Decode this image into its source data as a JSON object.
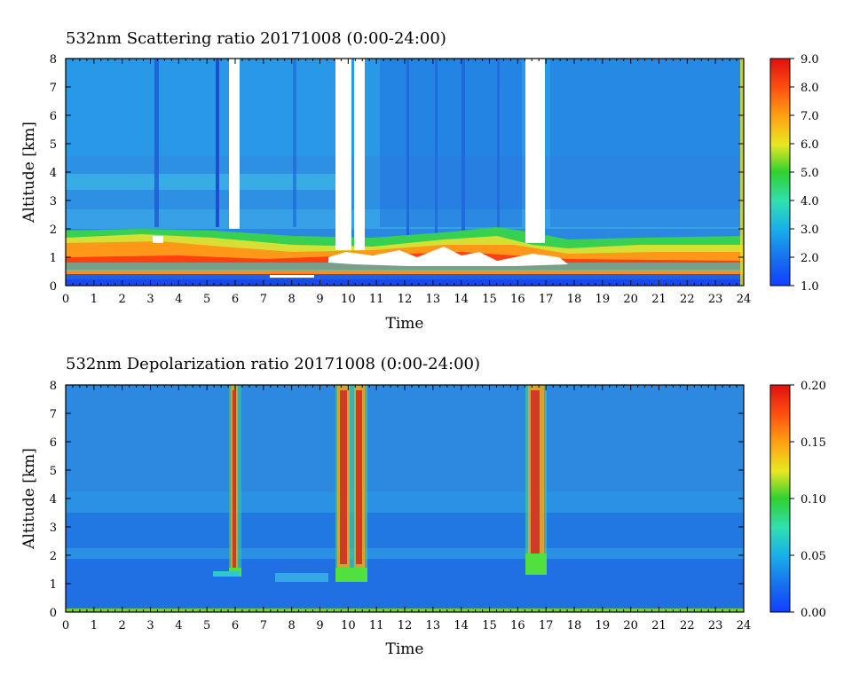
{
  "chart_data": [
    {
      "type": "heatmap",
      "title": "532nm Scattering ratio  20171008 (0:00-24:00)",
      "xlabel": "Time",
      "ylabel": "Altitude [km]",
      "xlim": [
        0,
        24
      ],
      "ylim": [
        0,
        8
      ],
      "x_ticks": [
        "0",
        "1",
        "2",
        "3",
        "4",
        "5",
        "6",
        "7",
        "8",
        "9",
        "10",
        "11",
        "12",
        "13",
        "14",
        "15",
        "16",
        "17",
        "18",
        "19",
        "20",
        "21",
        "22",
        "23",
        "24"
      ],
      "y_ticks": [
        "0",
        "1",
        "2",
        "3",
        "4",
        "5",
        "6",
        "7",
        "8"
      ],
      "colorbar": {
        "range": [
          1.0,
          9.0
        ],
        "ticks": [
          "1.0",
          "2.0",
          "3.0",
          "4.0",
          "5.0",
          "6.0",
          "7.0",
          "8.0",
          "9.0"
        ]
      },
      "background_value": 2.3,
      "features": [
        {
          "kind": "boundary_layer",
          "x_range": [
            0,
            24
          ],
          "alt_km": [
            0.3,
            2.0
          ],
          "value": 7.5
        },
        {
          "kind": "saturated_cloud",
          "x_range": [
            5.8,
            6.2
          ],
          "alt_km": [
            1.4,
            8.0
          ]
        },
        {
          "kind": "saturated_cloud",
          "x_range": [
            9.6,
            10.6
          ],
          "alt_km": [
            1.2,
            8.0
          ]
        },
        {
          "kind": "saturated_cloud",
          "x_range": [
            16.3,
            17.0
          ],
          "alt_km": [
            1.5,
            8.0
          ]
        },
        {
          "kind": "saturated_cloud",
          "x_range": [
            9.8,
            15.5
          ],
          "alt_km": [
            0.8,
            1.2
          ]
        }
      ]
    },
    {
      "type": "heatmap",
      "title": "532nm Depolarization ratio  20171008 (0:00-24:00)",
      "xlabel": "Time",
      "ylabel": "Altitude [km]",
      "xlim": [
        0,
        24
      ],
      "ylim": [
        0,
        8
      ],
      "x_ticks": [
        "0",
        "1",
        "2",
        "3",
        "4",
        "5",
        "6",
        "7",
        "8",
        "9",
        "10",
        "11",
        "12",
        "13",
        "14",
        "15",
        "16",
        "17",
        "18",
        "19",
        "20",
        "21",
        "22",
        "23",
        "24"
      ],
      "y_ticks": [
        "0",
        "1",
        "2",
        "3",
        "4",
        "5",
        "6",
        "7",
        "8"
      ],
      "colorbar": {
        "range": [
          0.0,
          0.2
        ],
        "ticks": [
          "0.00",
          "0.05",
          "0.10",
          "0.15",
          "0.20"
        ]
      },
      "background_value": 0.04,
      "features": [
        {
          "kind": "cloud_depolarization",
          "x_range": [
            5.8,
            6.2
          ],
          "alt_km": [
            1.2,
            8.0
          ],
          "value": 0.15
        },
        {
          "kind": "cloud_depolarization",
          "x_range": [
            9.6,
            10.6
          ],
          "alt_km": [
            1.2,
            8.0
          ],
          "value": 0.16
        },
        {
          "kind": "cloud_depolarization",
          "x_range": [
            16.3,
            17.0
          ],
          "alt_km": [
            1.2,
            8.0
          ],
          "value": 0.15
        }
      ]
    }
  ]
}
